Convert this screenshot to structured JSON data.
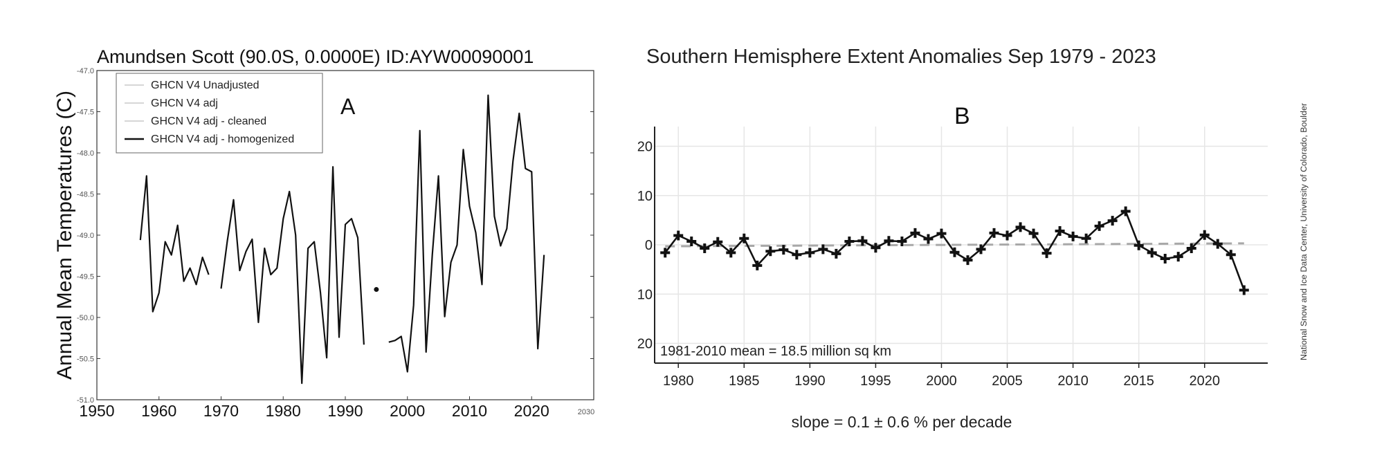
{
  "panel_a": {
    "title": "Amundsen Scott (90.0S, 0.0000E) ID:AYW00090001",
    "label": "A"
  },
  "panel_b": {
    "title": "Southern Hemisphere Extent Anomalies Sep 1979 - 2023",
    "label": "B",
    "credit": "National Snow and Ice Data Center, University of Colorado, Boulder"
  },
  "chart_data": [
    {
      "type": "line",
      "title": "Amundsen Scott (90.0S, 0.0000E) ID:AYW00090001",
      "xlabel": "",
      "ylabel": "Annual Mean Temperatures (C)",
      "xlim": [
        1950,
        2030
      ],
      "ylim": [
        -51.0,
        -47.0
      ],
      "xticks": [
        "1950",
        "1960",
        "1970",
        "1980",
        "1990",
        "2000",
        "2010",
        "2020"
      ],
      "xtick_extra": "2030",
      "yticks": [
        "-47.0",
        "-47.5",
        "-48.0",
        "-48.5",
        "-49.0",
        "-49.5",
        "-50.0",
        "-50.5",
        "-51.0"
      ],
      "legend_position": "upper-left",
      "colors": {
        "line": "#111111",
        "faint": "#d6d6d6"
      },
      "series": [
        {
          "name": "GHCN V4 Unadjusted",
          "values": []
        },
        {
          "name": "GHCN V4 adj",
          "values": []
        },
        {
          "name": "GHCN V4 adj - cleaned",
          "values": []
        },
        {
          "name": "GHCN V4 adj - homogenized",
          "segments": [
            {
              "x": [
                1957,
                1958,
                1959,
                1960,
                1961,
                1962,
                1963,
                1964,
                1965,
                1966,
                1967,
                1968
              ],
              "y": [
                -49.06,
                -48.28,
                -49.93,
                -49.7,
                -49.08,
                -49.24,
                -48.88,
                -49.56,
                -49.4,
                -49.6,
                -49.27,
                -49.48
              ]
            },
            {
              "x": [
                1970,
                1971,
                1972,
                1973,
                1974,
                1975,
                1976,
                1977,
                1978,
                1979,
                1980,
                1981,
                1982,
                1983,
                1984,
                1985,
                1986,
                1987,
                1988,
                1989,
                1990,
                1991,
                1992,
                1993
              ],
              "y": [
                -49.65,
                -49.07,
                -48.57,
                -49.43,
                -49.2,
                -49.05,
                -50.06,
                -49.16,
                -49.48,
                -49.4,
                -48.8,
                -48.47,
                -49.0,
                -50.8,
                -49.16,
                -49.08,
                -49.7,
                -50.49,
                -48.17,
                -50.24,
                -48.87,
                -48.8,
                -49.03,
                -50.33
              ]
            },
            {
              "x": [
                1995
              ],
              "y": [
                -49.66
              ]
            },
            {
              "x": [
                1997,
                1998,
                1999,
                2000,
                2001,
                2002,
                2003,
                2004,
                2005,
                2006,
                2007,
                2008,
                2009,
                2010,
                2011,
                2012,
                2013,
                2014,
                2015,
                2016,
                2017,
                2018,
                2019,
                2020,
                2021,
                2022
              ],
              "y": [
                -50.3,
                -50.28,
                -50.23,
                -50.66,
                -49.85,
                -47.73,
                -50.42,
                -49.24,
                -48.28,
                -49.99,
                -49.33,
                -49.12,
                -47.96,
                -48.65,
                -48.97,
                -49.6,
                -47.3,
                -48.77,
                -49.13,
                -48.92,
                -48.1,
                -47.52,
                -48.19,
                -48.23,
                -50.38,
                -49.24
              ]
            }
          ]
        }
      ]
    },
    {
      "type": "line",
      "title": "Southern Hemisphere Extent Anomalies Sep 1979 - 2023",
      "xlabel": "slope = 0.1 ± 0.6 % per decade",
      "ylabel": "",
      "xlim": [
        1978.2,
        2024.8
      ],
      "ylim": [
        -24,
        24
      ],
      "xticks": [
        "1980",
        "1985",
        "1990",
        "1995",
        "2000",
        "2005",
        "2010",
        "2015",
        "2020"
      ],
      "yticks": [
        "20",
        "10",
        "0",
        "10",
        "20"
      ],
      "annotation": "1981-2010 mean = 18.5 million sq km",
      "trend": {
        "x": [
          1979,
          2023
        ],
        "y": [
          -0.3,
          0.3
        ]
      },
      "grid": true,
      "colors": {
        "line": "#111111",
        "trend": "#a8a8a8",
        "grid": "#e6e6e6"
      },
      "series": [
        {
          "name": "",
          "x": [
            1979,
            1980,
            1981,
            1982,
            1983,
            1984,
            1985,
            1986,
            1987,
            1988,
            1989,
            1990,
            1991,
            1992,
            1993,
            1994,
            1995,
            1996,
            1997,
            1998,
            1999,
            2000,
            2001,
            2002,
            2003,
            2004,
            2005,
            2006,
            2007,
            2008,
            2009,
            2010,
            2011,
            2012,
            2013,
            2014,
            2015,
            2016,
            2017,
            2018,
            2019,
            2020,
            2021,
            2022,
            2023
          ],
          "y": [
            -1.6,
            1.9,
            0.7,
            -0.7,
            0.6,
            -1.6,
            1.3,
            -4.2,
            -1.3,
            -1.0,
            -2.0,
            -1.6,
            -0.9,
            -1.8,
            0.7,
            0.8,
            -0.6,
            0.8,
            0.7,
            2.4,
            1.2,
            2.3,
            -1.5,
            -3.1,
            -0.9,
            2.4,
            1.9,
            3.6,
            2.3,
            -1.7,
            2.8,
            1.7,
            1.3,
            3.8,
            4.9,
            6.8,
            -0.1,
            -1.6,
            -2.8,
            -2.4,
            -0.7,
            2.0,
            0.2,
            -2.0,
            -9.2
          ]
        }
      ]
    }
  ]
}
